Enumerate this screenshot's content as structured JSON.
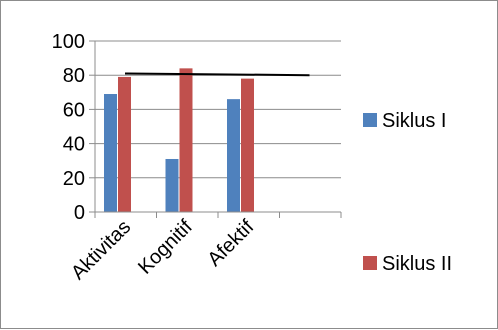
{
  "chart_data": {
    "type": "bar",
    "categories": [
      "Aktivitas",
      "Kognitif",
      "Afektif",
      ""
    ],
    "series": [
      {
        "name": "Siklus I",
        "color": "#4f81bd",
        "values": [
          69,
          31,
          66,
          null
        ]
      },
      {
        "name": "Siklus II",
        "color": "#c0504d",
        "values": [
          79,
          84,
          78,
          null
        ]
      }
    ],
    "reference_line": {
      "y_start": 81,
      "y_end": 80,
      "color": "#000000"
    },
    "ylim": [
      0,
      100
    ],
    "yticks": [
      0,
      20,
      40,
      60,
      80,
      100
    ],
    "grid": true,
    "legend_position": "right",
    "title": "",
    "xlabel": "",
    "ylabel": ""
  }
}
